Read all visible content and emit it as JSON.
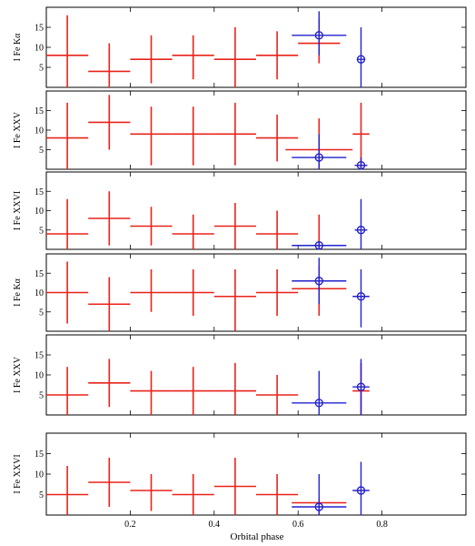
{
  "chart_data": {
    "type": "scatter",
    "xlabel": "Orbital phase",
    "xlim": [
      0,
      1
    ],
    "x_ticks": [
      0.2,
      0.4,
      0.6,
      0.8
    ],
    "x_tick_labels": [
      "0.2",
      "0.4",
      "0.6",
      "0.8"
    ],
    "colors": {
      "red_series": "#e8231a",
      "blue_series": "#2222cc"
    },
    "panels": [
      {
        "ylabel": "I Fe Kα",
        "ylim": [
          0,
          20
        ],
        "y_ticks": [
          5,
          10,
          15
        ],
        "red": [
          {
            "x": 0.05,
            "xerr": 0.05,
            "y": 8,
            "ylo": 0,
            "yhi": 18
          },
          {
            "x": 0.15,
            "xerr": 0.05,
            "y": 4,
            "ylo": 0,
            "yhi": 11
          },
          {
            "x": 0.25,
            "xerr": 0.05,
            "y": 7,
            "ylo": 1,
            "yhi": 13
          },
          {
            "x": 0.35,
            "xerr": 0.05,
            "y": 8,
            "ylo": 2,
            "yhi": 13
          },
          {
            "x": 0.45,
            "xerr": 0.05,
            "y": 7,
            "ylo": 0,
            "yhi": 15
          },
          {
            "x": 0.55,
            "xerr": 0.05,
            "y": 8,
            "ylo": 2,
            "yhi": 14
          },
          {
            "x": 0.65,
            "xerr": 0.05,
            "y": 11,
            "ylo": 6,
            "yhi": 17
          }
        ],
        "blue": [
          {
            "x": 0.65,
            "xerr": 0.065,
            "y": 13,
            "ylo": 8,
            "yhi": 19
          },
          {
            "x": 0.75,
            "xerr": 0.01,
            "y": 7,
            "ylo": 0,
            "yhi": 15
          }
        ]
      },
      {
        "ylabel": "I Fe XXV",
        "ylim": [
          0,
          20
        ],
        "y_ticks": [
          5,
          10,
          15
        ],
        "red": [
          {
            "x": 0.05,
            "xerr": 0.05,
            "y": 8,
            "ylo": 0,
            "yhi": 17
          },
          {
            "x": 0.15,
            "xerr": 0.05,
            "y": 12,
            "ylo": 5,
            "yhi": 19
          },
          {
            "x": 0.25,
            "xerr": 0.05,
            "y": 9,
            "ylo": 1,
            "yhi": 16
          },
          {
            "x": 0.35,
            "xerr": 0.05,
            "y": 9,
            "ylo": 1,
            "yhi": 16
          },
          {
            "x": 0.45,
            "xerr": 0.05,
            "y": 9,
            "ylo": 1,
            "yhi": 17
          },
          {
            "x": 0.55,
            "xerr": 0.05,
            "y": 8,
            "ylo": 2,
            "yhi": 14
          },
          {
            "x": 0.65,
            "xerr": 0.08,
            "y": 5,
            "ylo": 0,
            "yhi": 13
          },
          {
            "x": 0.75,
            "xerr": 0.02,
            "y": 9,
            "ylo": 0,
            "yhi": 17
          }
        ],
        "blue": [
          {
            "x": 0.65,
            "xerr": 0.065,
            "y": 3,
            "ylo": 0,
            "yhi": 9
          },
          {
            "x": 0.75,
            "xerr": 0.015,
            "y": 1,
            "ylo": 0,
            "yhi": 3
          }
        ]
      },
      {
        "ylabel": "I Fe XXVI",
        "ylim": [
          0,
          20
        ],
        "y_ticks": [
          5,
          10,
          15
        ],
        "red": [
          {
            "x": 0.05,
            "xerr": 0.05,
            "y": 4,
            "ylo": 0,
            "yhi": 13
          },
          {
            "x": 0.15,
            "xerr": 0.05,
            "y": 8,
            "ylo": 1,
            "yhi": 15
          },
          {
            "x": 0.25,
            "xerr": 0.05,
            "y": 6,
            "ylo": 1,
            "yhi": 11
          },
          {
            "x": 0.35,
            "xerr": 0.05,
            "y": 4,
            "ylo": 0,
            "yhi": 9
          },
          {
            "x": 0.45,
            "xerr": 0.05,
            "y": 6,
            "ylo": 0,
            "yhi": 12
          },
          {
            "x": 0.55,
            "xerr": 0.05,
            "y": 4,
            "ylo": 0,
            "yhi": 10
          },
          {
            "x": 0.65,
            "xerr": 0.04,
            "y": 1,
            "ylo": 0,
            "yhi": 9
          }
        ],
        "blue": [
          {
            "x": 0.65,
            "xerr": 0.065,
            "y": 1,
            "ylo": 0,
            "yhi": 2
          },
          {
            "x": 0.75,
            "xerr": 0.015,
            "y": 5,
            "ylo": 0,
            "yhi": 13
          }
        ]
      },
      {
        "ylabel": "I Fe Kα",
        "ylim": [
          0,
          20
        ],
        "y_ticks": [
          5,
          10,
          15
        ],
        "red": [
          {
            "x": 0.05,
            "xerr": 0.05,
            "y": 10,
            "ylo": 2,
            "yhi": 18
          },
          {
            "x": 0.15,
            "xerr": 0.05,
            "y": 7,
            "ylo": 0,
            "yhi": 14
          },
          {
            "x": 0.25,
            "xerr": 0.05,
            "y": 10,
            "ylo": 5,
            "yhi": 16
          },
          {
            "x": 0.35,
            "xerr": 0.05,
            "y": 10,
            "ylo": 4,
            "yhi": 16
          },
          {
            "x": 0.45,
            "xerr": 0.05,
            "y": 9,
            "ylo": 0,
            "yhi": 16
          },
          {
            "x": 0.55,
            "xerr": 0.05,
            "y": 10,
            "ylo": 4,
            "yhi": 16
          },
          {
            "x": 0.65,
            "xerr": 0.065,
            "y": 11,
            "ylo": 4,
            "yhi": 17
          }
        ],
        "blue": [
          {
            "x": 0.65,
            "xerr": 0.065,
            "y": 13,
            "ylo": 7,
            "yhi": 19
          },
          {
            "x": 0.75,
            "xerr": 0.02,
            "y": 9,
            "ylo": 1,
            "yhi": 16
          }
        ]
      },
      {
        "ylabel": "I Fe XXV",
        "ylim": [
          0,
          20
        ],
        "y_ticks": [
          5,
          10,
          15
        ],
        "red": [
          {
            "x": 0.05,
            "xerr": 0.05,
            "y": 5,
            "ylo": 0,
            "yhi": 12
          },
          {
            "x": 0.15,
            "xerr": 0.05,
            "y": 8,
            "ylo": 2,
            "yhi": 14
          },
          {
            "x": 0.25,
            "xerr": 0.05,
            "y": 6,
            "ylo": 0,
            "yhi": 11
          },
          {
            "x": 0.35,
            "xerr": 0.05,
            "y": 6,
            "ylo": 0,
            "yhi": 12
          },
          {
            "x": 0.45,
            "xerr": 0.05,
            "y": 6,
            "ylo": 0,
            "yhi": 13
          },
          {
            "x": 0.55,
            "xerr": 0.05,
            "y": 5,
            "ylo": 0,
            "yhi": 10
          },
          {
            "x": 0.75,
            "xerr": 0.02,
            "y": 6,
            "ylo": 0,
            "yhi": 13
          }
        ],
        "blue": [
          {
            "x": 0.65,
            "xerr": 0.065,
            "y": 3,
            "ylo": 0,
            "yhi": 11
          },
          {
            "x": 0.75,
            "xerr": 0.02,
            "y": 7,
            "ylo": 0,
            "yhi": 14
          }
        ]
      },
      {
        "ylabel": "I Fe XXVI",
        "ylim": [
          0,
          20
        ],
        "y_ticks": [
          5,
          10,
          15
        ],
        "red": [
          {
            "x": 0.05,
            "xerr": 0.05,
            "y": 5,
            "ylo": 0,
            "yhi": 12
          },
          {
            "x": 0.15,
            "xerr": 0.05,
            "y": 8,
            "ylo": 2,
            "yhi": 14
          },
          {
            "x": 0.25,
            "xerr": 0.05,
            "y": 6,
            "ylo": 1,
            "yhi": 10
          },
          {
            "x": 0.35,
            "xerr": 0.05,
            "y": 5,
            "ylo": 0,
            "yhi": 10
          },
          {
            "x": 0.45,
            "xerr": 0.05,
            "y": 7,
            "ylo": 0,
            "yhi": 14
          },
          {
            "x": 0.55,
            "xerr": 0.05,
            "y": 5,
            "ylo": 0,
            "yhi": 10
          },
          {
            "x": 0.65,
            "xerr": 0.065,
            "y": 3,
            "ylo": 0,
            "yhi": 4
          }
        ],
        "blue": [
          {
            "x": 0.65,
            "xerr": 0.065,
            "y": 2,
            "ylo": 0,
            "yhi": 10
          },
          {
            "x": 0.75,
            "xerr": 0.02,
            "y": 6,
            "ylo": 0,
            "yhi": 13
          }
        ]
      }
    ]
  }
}
